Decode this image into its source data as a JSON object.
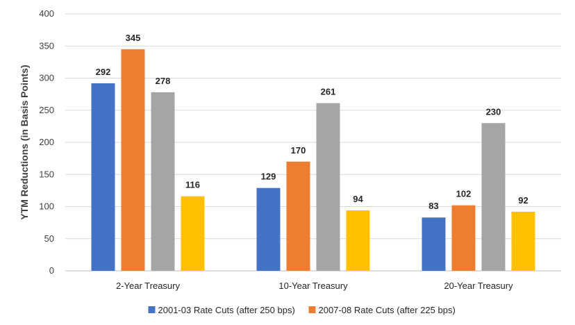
{
  "chart_data": {
    "type": "bar",
    "title": "",
    "xlabel": "",
    "ylabel": "YTM Reductions (in Basis Points)",
    "ylim": [
      0,
      400
    ],
    "yticks": [
      0,
      50,
      100,
      150,
      200,
      250,
      300,
      350,
      400
    ],
    "grid": true,
    "legend_position": "bottom",
    "categories": [
      "2-Year Treasury",
      "10-Year Treasury",
      "20-Year Treasury"
    ],
    "series": [
      {
        "name": "2001-03 Rate Cuts (after 250 bps)",
        "color": "#4472C4",
        "values": [
          292,
          129,
          83
        ],
        "in_legend": true
      },
      {
        "name": "2007-08 Rate Cuts (after 225 bps)",
        "color": "#ED7D31",
        "values": [
          345,
          170,
          102
        ],
        "in_legend": true
      },
      {
        "name": "",
        "color": "#A5A5A5",
        "values": [
          278,
          261,
          230
        ],
        "in_legend": false
      },
      {
        "name": "",
        "color": "#FFC000",
        "values": [
          116,
          94,
          92
        ],
        "in_legend": false
      }
    ]
  }
}
